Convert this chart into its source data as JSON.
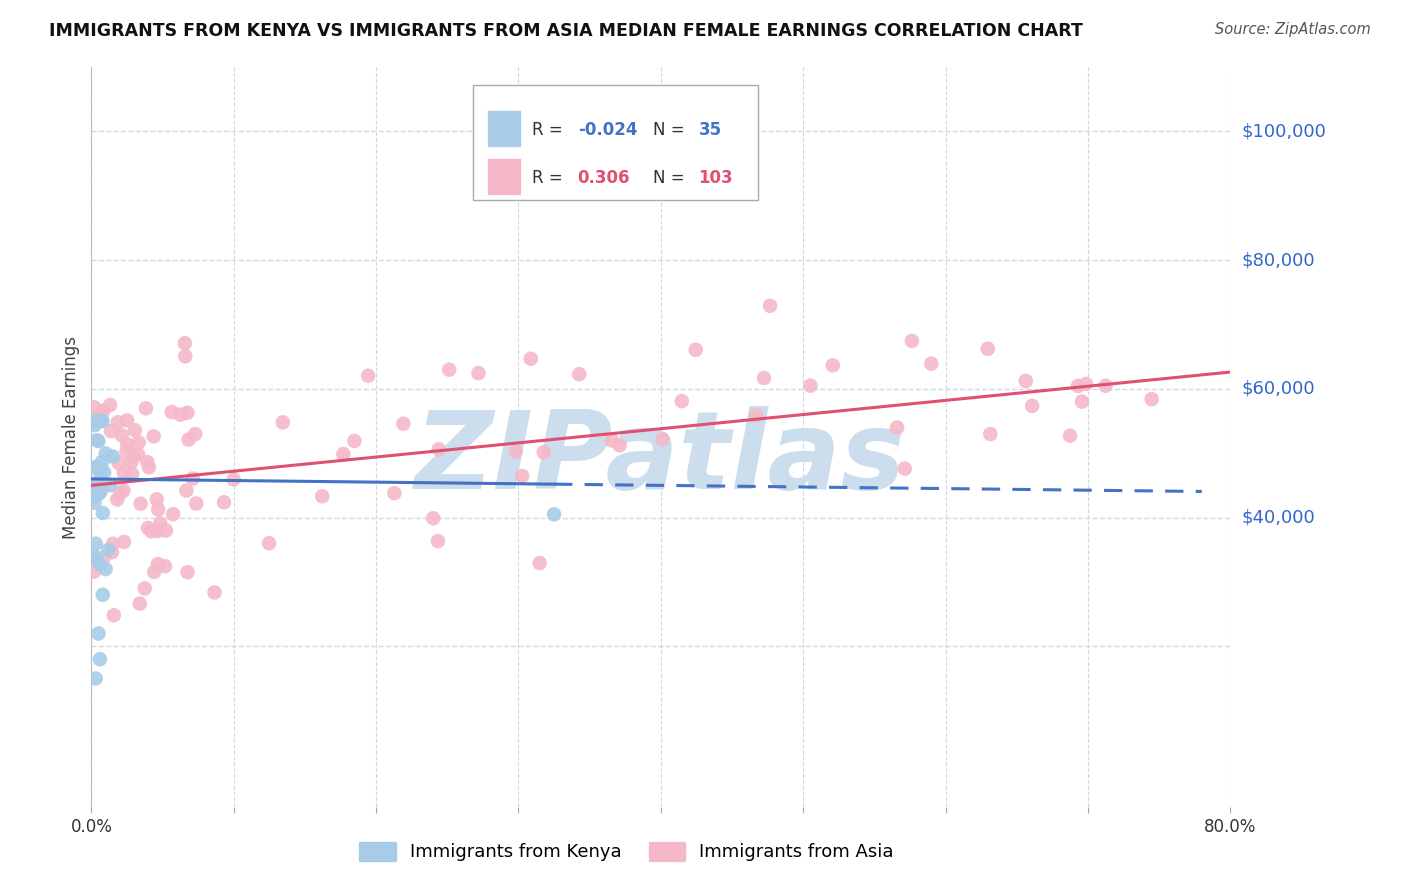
{
  "title": "IMMIGRANTS FROM KENYA VS IMMIGRANTS FROM ASIA MEDIAN FEMALE EARNINGS CORRELATION CHART",
  "source": "Source: ZipAtlas.com",
  "ylabel": "Median Female Earnings",
  "kenya_R": -0.024,
  "kenya_N": 35,
  "asia_R": 0.306,
  "asia_N": 103,
  "kenya_color": "#a8cce8",
  "asia_color": "#f5b8c8",
  "kenya_line_color": "#4472c4",
  "asia_line_color": "#e05070",
  "watermark": "ZIPatlas",
  "watermark_color": "#ccdded",
  "background_color": "#ffffff",
  "grid_color": "#ccd9e8",
  "ytick_color": "#3366cc",
  "title_color": "#111111",
  "source_color": "#555555",
  "xlim": [
    0.0,
    0.8
  ],
  "ylim": [
    -5000,
    110000
  ],
  "ytick_values": [
    40000,
    60000,
    80000,
    100000
  ],
  "ytick_labels": [
    "$40,000",
    "$60,000",
    "$80,000",
    "$100,000"
  ],
  "kenya_line_x0": 0.0,
  "kenya_line_x_solid_end": 0.325,
  "kenya_line_x_dashed_end": 0.78,
  "kenya_line_y0": 46000,
  "kenya_line_slope": -2500,
  "asia_line_y0": 45000,
  "asia_line_slope": 22000
}
